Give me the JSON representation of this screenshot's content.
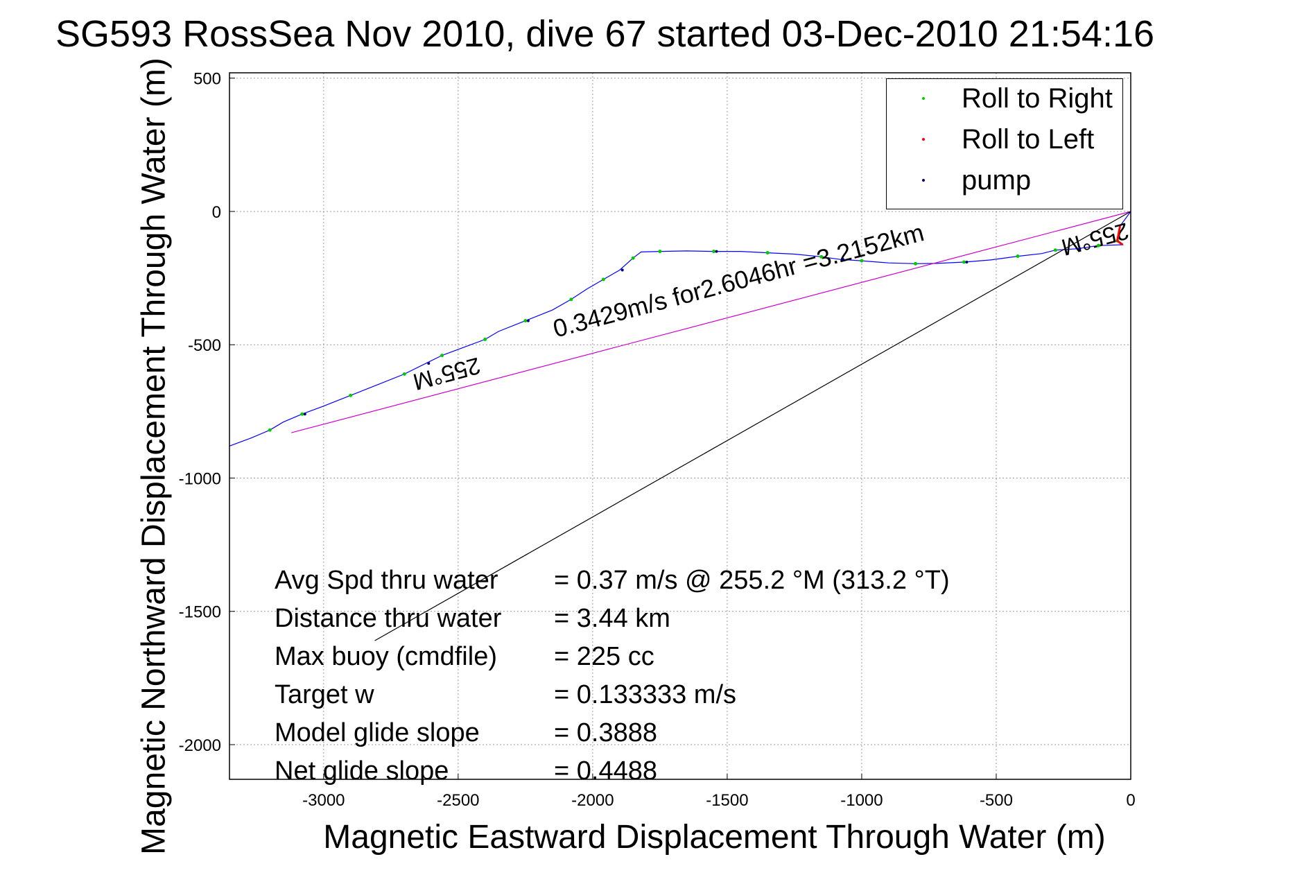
{
  "title": "SG593 RossSea Nov 2010, dive 67 started 03-Dec-2010 21:54:16",
  "legend": [
    {
      "label": "Roll to Right",
      "color": "#00cc00"
    },
    {
      "label": "Roll to Left",
      "color": "#ff0000"
    },
    {
      "label": "pump",
      "color": "#000080"
    }
  ],
  "stats": [
    {
      "label": "Avg Spd thru water",
      "value": "=  0.37 m/s @ 255.2 °M (313.2 °T)"
    },
    {
      "label": "Distance thru water",
      "value": "=  3.44 km"
    },
    {
      "label": "Max buoy (cmdfile)",
      "value": "= 225 cc"
    },
    {
      "label": "Target w",
      "value": "= 0.133333 m/s"
    },
    {
      "label": "Model glide slope",
      "value": "= 0.3888"
    },
    {
      "label": "Net glide slope",
      "value": "= 0.4488"
    }
  ],
  "chart_data": {
    "type": "line",
    "title": "SG593 RossSea Nov 2010, dive 67 started 03-Dec-2010 21:54:16",
    "xlabel": "Magnetic Eastward Displacement Through Water (m)",
    "ylabel": "Magnetic Northward Displacement Through Water (m)",
    "xlim": [
      -3350,
      0
    ],
    "ylim": [
      -2130,
      520
    ],
    "xticks": [
      -3000,
      -2500,
      -2000,
      -1500,
      -1000,
      -500,
      0
    ],
    "yticks": [
      500,
      0,
      -500,
      -1000,
      -1500,
      -2000
    ],
    "grid": true,
    "legend_position": "top-right",
    "series": [
      {
        "name": "track",
        "color": "#0000ff",
        "points": [
          [
            0,
            0
          ],
          [
            -40,
            -55
          ],
          [
            -50,
            -110
          ],
          [
            -30,
            -125
          ],
          [
            -120,
            -128
          ],
          [
            -200,
            -140
          ],
          [
            -280,
            -145
          ],
          [
            -330,
            -158
          ],
          [
            -420,
            -168
          ],
          [
            -520,
            -182
          ],
          [
            -620,
            -190
          ],
          [
            -720,
            -195
          ],
          [
            -800,
            -196
          ],
          [
            -900,
            -193
          ],
          [
            -1000,
            -185
          ],
          [
            -1080,
            -180
          ],
          [
            -1150,
            -170
          ],
          [
            -1250,
            -160
          ],
          [
            -1350,
            -155
          ],
          [
            -1450,
            -150
          ],
          [
            -1550,
            -150
          ],
          [
            -1650,
            -148
          ],
          [
            -1750,
            -150
          ],
          [
            -1820,
            -152
          ],
          [
            -1850,
            -175
          ],
          [
            -1900,
            -220
          ],
          [
            -1960,
            -255
          ],
          [
            -2020,
            -290
          ],
          [
            -2080,
            -330
          ],
          [
            -2150,
            -370
          ],
          [
            -2250,
            -410
          ],
          [
            -2350,
            -450
          ],
          [
            -2400,
            -480
          ],
          [
            -2480,
            -510
          ],
          [
            -2560,
            -540
          ],
          [
            -2620,
            -570
          ],
          [
            -2700,
            -610
          ],
          [
            -2800,
            -650
          ],
          [
            -2900,
            -690
          ],
          [
            -3000,
            -730
          ],
          [
            -3080,
            -760
          ],
          [
            -3150,
            -790
          ],
          [
            -3200,
            -820
          ],
          [
            -3270,
            -850
          ],
          [
            -3350,
            -880
          ]
        ],
        "annotations": [
          {
            "text": "255°M",
            "x": -140,
            "y": -75
          },
          {
            "text": "255°M",
            "x": -2550,
            "y": -580
          }
        ]
      },
      {
        "name": "line",
        "color": "#cc00cc",
        "points": [
          [
            0,
            0
          ],
          [
            -3120,
            -830
          ]
        ],
        "label": "0.3429m/s for2.6046hr =3.2152km"
      },
      {
        "name": "line",
        "color": "#000000",
        "points": [
          [
            0,
            0
          ],
          [
            -2810,
            -1610
          ]
        ]
      }
    ]
  }
}
